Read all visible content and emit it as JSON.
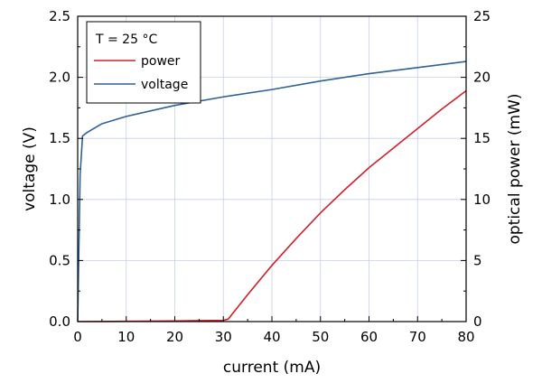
{
  "chart_data": {
    "type": "line",
    "xlabel": "current (mA)",
    "ylabel_left": "voltage (V)",
    "ylabel_right": "optical power (mW)",
    "xlim": [
      0,
      80
    ],
    "ylim_left": [
      0,
      2.5
    ],
    "ylim_right": [
      0,
      25
    ],
    "xticks": [
      "0",
      "10",
      "20",
      "30",
      "40",
      "50",
      "60",
      "70",
      "80"
    ],
    "yticks_left": [
      "0.0",
      "0.5",
      "1.0",
      "1.5",
      "2.0",
      "2.5"
    ],
    "yticks_right": [
      "0",
      "5",
      "10",
      "15",
      "20",
      "25"
    ],
    "grid": true,
    "legend": {
      "placement": "top-left",
      "title": "T = 25 °C",
      "entries": [
        {
          "label": "power",
          "color": "#d0202a"
        },
        {
          "label": "voltage",
          "color": "#2e6196"
        }
      ]
    },
    "series": [
      {
        "name": "power",
        "axis": "right",
        "color": "#d0202a",
        "x": [
          0,
          10,
          20,
          25,
          30,
          31,
          33,
          35,
          40,
          45,
          50,
          55,
          60,
          65,
          70,
          75,
          80
        ],
        "y": [
          0,
          0.02,
          0.05,
          0.08,
          0.1,
          0.2,
          1.2,
          2.2,
          4.6,
          6.8,
          8.9,
          10.8,
          12.6,
          14.2,
          15.8,
          17.4,
          18.9
        ]
      },
      {
        "name": "voltage",
        "axis": "left",
        "color": "#2e6196",
        "x": [
          0,
          0.5,
          1,
          2,
          5,
          10,
          20,
          30,
          40,
          50,
          60,
          70,
          80
        ],
        "y": [
          0,
          1.2,
          1.52,
          1.55,
          1.62,
          1.68,
          1.77,
          1.84,
          1.9,
          1.97,
          2.03,
          2.08,
          2.13
        ]
      }
    ]
  }
}
